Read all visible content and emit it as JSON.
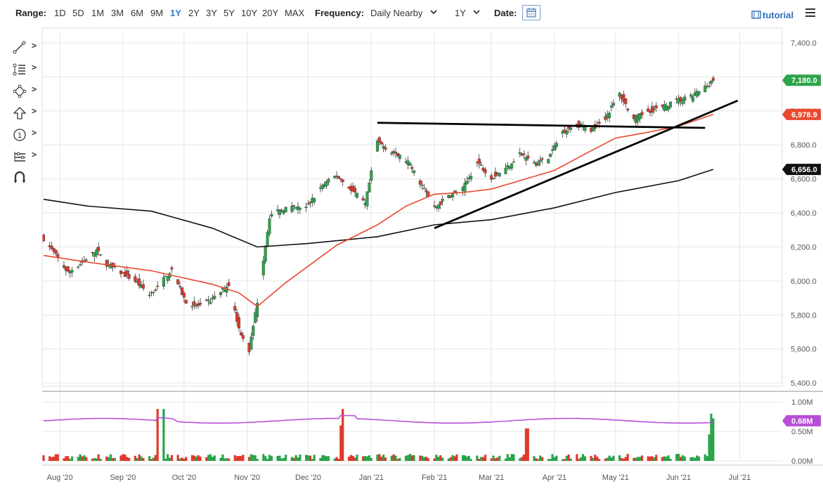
{
  "toolbar": {
    "range_label": "Range:",
    "ranges": [
      "1D",
      "5D",
      "1M",
      "3M",
      "6M",
      "9M",
      "1Y",
      "2Y",
      "3Y",
      "5Y",
      "10Y",
      "20Y",
      "MAX"
    ],
    "active_range": "1Y",
    "frequency_label": "Frequency:",
    "frequency_value": "Daily Nearby",
    "period_value": "1Y",
    "date_label": "Date:",
    "tutorial_label": "tutorial"
  },
  "colors": {
    "up": "#2ca44a",
    "down": "#e0392b",
    "ma_fast": "#e8492f",
    "ma_slow": "#111111",
    "volume_avg": "#b84fd8",
    "accent": "#2f7fd1"
  },
  "chart_data": {
    "type": "candlestick",
    "x_tick_labels": [
      "Aug '20",
      "Sep '20",
      "Oct '20",
      "Nov '20",
      "Dec '20",
      "Jan '21",
      "Feb '21",
      "Mar '21",
      "Apr '21",
      "May '21",
      "Jun '21",
      "Jul '21"
    ],
    "price_axis": {
      "ticks": [
        "7,400.0",
        "7,200.0",
        "7,000.0",
        "6,800.0",
        "6,600.0",
        "6,400.0",
        "6,200.0",
        "6,000.0",
        "5,800.0",
        "5,600.0",
        "5,400.0"
      ],
      "ylim": [
        5380,
        7470
      ]
    },
    "volume_axis": {
      "ticks": [
        "1.00M",
        "0.50M",
        "0.00M"
      ],
      "ylim": [
        0,
        1.0
      ]
    },
    "last_price_label": "7,180.0",
    "ma_fast_label": "6,978.9",
    "ma_slow_label": "6,656.0",
    "volume_label": "0.68M",
    "close_path": [
      [
        "2020-07-24",
        6250
      ],
      [
        "2020-07-30",
        6150
      ],
      [
        "2020-08-05",
        6050
      ],
      [
        "2020-08-12",
        6110
      ],
      [
        "2020-08-19",
        6180
      ],
      [
        "2020-08-24",
        6100
      ],
      [
        "2020-08-31",
        6050
      ],
      [
        "2020-09-07",
        6000
      ],
      [
        "2020-09-14",
        5920
      ],
      [
        "2020-09-18",
        5960
      ],
      [
        "2020-09-25",
        6070
      ],
      [
        "2020-10-02",
        5870
      ],
      [
        "2020-10-09",
        5850
      ],
      [
        "2020-10-16",
        5900
      ],
      [
        "2020-10-23",
        5980
      ],
      [
        "2020-10-28",
        5720
      ],
      [
        "2020-11-02",
        5590
      ],
      [
        "2020-11-06",
        5880
      ],
      [
        "2020-11-12",
        6380
      ],
      [
        "2020-11-20",
        6430
      ],
      [
        "2020-11-30",
        6430
      ],
      [
        "2020-12-08",
        6560
      ],
      [
        "2020-12-15",
        6620
      ],
      [
        "2020-12-22",
        6540
      ],
      [
        "2020-12-29",
        6450
      ],
      [
        "2021-01-04",
        6820
      ],
      [
        "2021-01-11",
        6760
      ],
      [
        "2021-01-19",
        6700
      ],
      [
        "2021-01-26",
        6560
      ],
      [
        "2021-02-01",
        6430
      ],
      [
        "2021-02-08",
        6500
      ],
      [
        "2021-02-15",
        6540
      ],
      [
        "2021-02-22",
        6700
      ],
      [
        "2021-03-01",
        6610
      ],
      [
        "2021-03-08",
        6660
      ],
      [
        "2021-03-15",
        6750
      ],
      [
        "2021-03-22",
        6690
      ],
      [
        "2021-03-29",
        6720
      ],
      [
        "2021-04-05",
        6880
      ],
      [
        "2021-04-12",
        6920
      ],
      [
        "2021-04-19",
        6890
      ],
      [
        "2021-04-26",
        6960
      ],
      [
        "2021-05-03",
        7100
      ],
      [
        "2021-05-10",
        6950
      ],
      [
        "2021-05-17",
        7000
      ],
      [
        "2021-05-24",
        7020
      ],
      [
        "2021-05-31",
        7060
      ],
      [
        "2021-06-07",
        7080
      ],
      [
        "2021-06-14",
        7140
      ],
      [
        "2021-06-18",
        7180
      ]
    ],
    "ma_fast_path": [
      [
        "2020-07-24",
        6150
      ],
      [
        "2020-08-15",
        6110
      ],
      [
        "2020-09-15",
        6060
      ],
      [
        "2020-10-15",
        5980
      ],
      [
        "2020-10-28",
        5930
      ],
      [
        "2020-11-06",
        5850
      ],
      [
        "2020-11-20",
        5990
      ],
      [
        "2020-12-15",
        6210
      ],
      [
        "2021-01-04",
        6330
      ],
      [
        "2021-01-18",
        6440
      ],
      [
        "2021-02-01",
        6510
      ],
      [
        "2021-02-15",
        6520
      ],
      [
        "2021-03-01",
        6540
      ],
      [
        "2021-03-15",
        6590
      ],
      [
        "2021-04-01",
        6650
      ],
      [
        "2021-04-15",
        6740
      ],
      [
        "2021-05-01",
        6840
      ],
      [
        "2021-05-15",
        6870
      ],
      [
        "2021-06-01",
        6910
      ],
      [
        "2021-06-18",
        6979
      ]
    ],
    "ma_slow_path": [
      [
        "2020-07-24",
        6480
      ],
      [
        "2020-08-15",
        6440
      ],
      [
        "2020-09-15",
        6410
      ],
      [
        "2020-10-15",
        6310
      ],
      [
        "2020-11-06",
        6200
      ],
      [
        "2020-12-01",
        6220
      ],
      [
        "2021-01-04",
        6260
      ],
      [
        "2021-02-01",
        6330
      ],
      [
        "2021-03-01",
        6360
      ],
      [
        "2021-04-01",
        6430
      ],
      [
        "2021-05-01",
        6520
      ],
      [
        "2021-06-01",
        6590
      ],
      [
        "2021-06-18",
        6656
      ]
    ],
    "trendlines": [
      {
        "from": [
          "2021-01-04",
          6930
        ],
        "to": [
          "2021-06-14",
          6900
        ]
      },
      {
        "from": [
          "2021-02-01",
          6310
        ],
        "to": [
          "2021-06-30",
          7060
        ]
      }
    ],
    "volume_spikes": [
      {
        "date": "2020-09-18",
        "value": 0.88,
        "dir": "down"
      },
      {
        "date": "2020-09-21",
        "value": 0.88,
        "dir": "up"
      },
      {
        "date": "2020-12-17",
        "value": 0.6,
        "dir": "down"
      },
      {
        "date": "2020-12-18",
        "value": 0.88,
        "dir": "down"
      },
      {
        "date": "2021-03-18",
        "value": 0.55,
        "dir": "down"
      },
      {
        "date": "2021-03-19",
        "value": 0.55,
        "dir": "down"
      },
      {
        "date": "2021-06-16",
        "value": 0.45,
        "dir": "up"
      },
      {
        "date": "2021-06-17",
        "value": 0.8,
        "dir": "up"
      },
      {
        "date": "2021-06-18",
        "value": 0.72,
        "dir": "up"
      }
    ],
    "volume_avg_level": 0.68,
    "grid": true
  }
}
